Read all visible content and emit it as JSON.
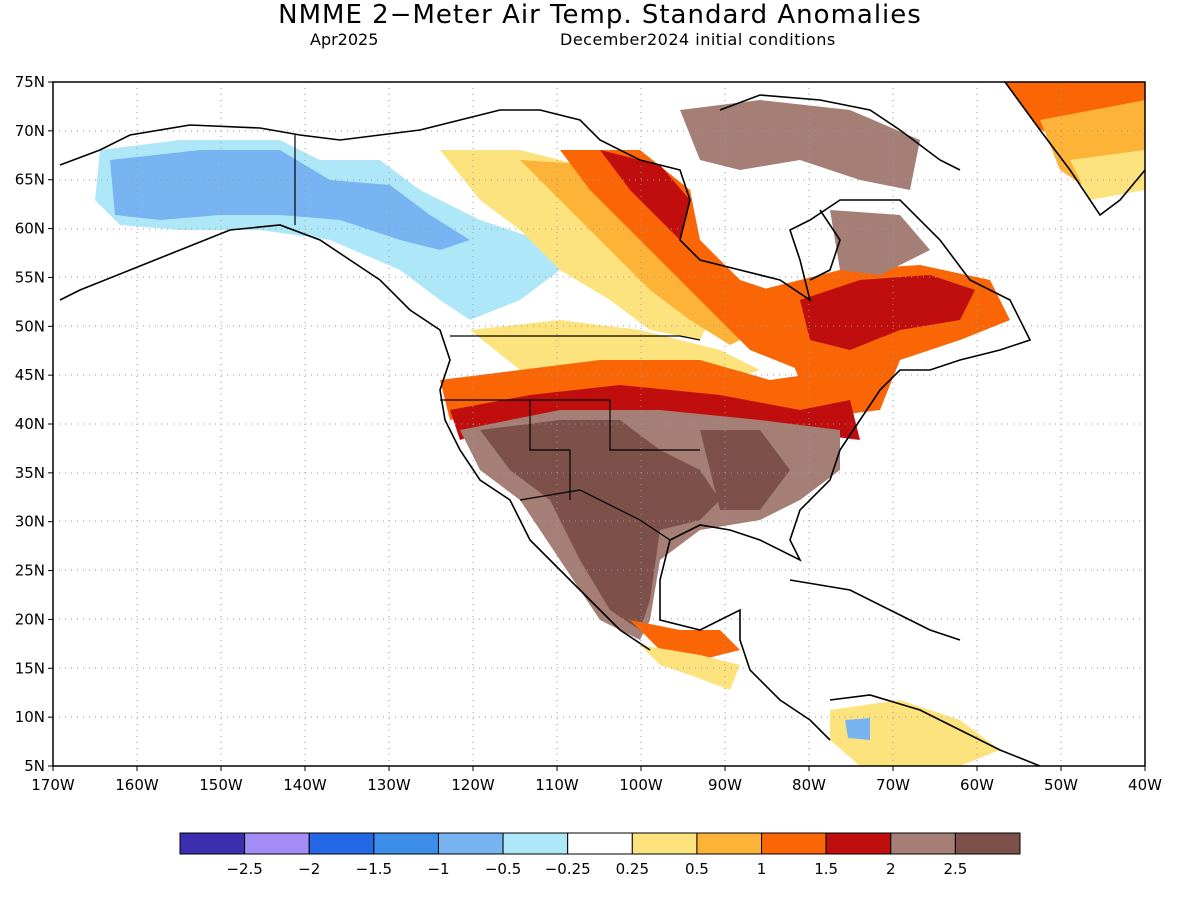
{
  "header": {
    "title": "NMME 2−Meter Air Temp. Standard Anomalies",
    "valid_month": "Apr2025",
    "initial_conditions": "December2024 initial conditions"
  },
  "chart_data": {
    "type": "heatmap",
    "title": "NMME 2−Meter Air Temp. Standard Anomalies",
    "lon_range": [
      -170,
      -40
    ],
    "lat_range": [
      5,
      75
    ],
    "lat_ticks": [
      "75N",
      "70N",
      "65N",
      "60N",
      "55N",
      "50N",
      "45N",
      "40N",
      "35N",
      "30N",
      "25N",
      "20N",
      "15N",
      "10N",
      "5N"
    ],
    "lon_ticks": [
      "170W",
      "160W",
      "150W",
      "140W",
      "130W",
      "120W",
      "110W",
      "100W",
      "90W",
      "80W",
      "70W",
      "60W",
      "50W",
      "40W"
    ],
    "grid": "dotted",
    "colorbar": {
      "bins": [
        {
          "color": "#3b2fb0"
        },
        {
          "color": "#a38cf6"
        },
        {
          "color": "#2468e6"
        },
        {
          "color": "#3d8ee8"
        },
        {
          "color": "#78b4f2"
        },
        {
          "color": "#aee8f8"
        },
        {
          "color": "#ffffff"
        },
        {
          "color": "#fde37e"
        },
        {
          "color": "#fcb338"
        },
        {
          "color": "#fa6506"
        },
        {
          "color": "#c00e0f"
        },
        {
          "color": "#a57e76"
        },
        {
          "color": "#7d5149"
        }
      ],
      "labels": [
        "−2.5",
        "−2",
        "−1.5",
        "−1",
        "−0.5",
        "−0.25",
        "0.25",
        "0.5",
        "1",
        "1.5",
        "2",
        "2.5"
      ]
    },
    "regions": [
      {
        "name": "alaska-yukon",
        "color": "#78b4f2",
        "level": "-1"
      },
      {
        "name": "western-canada",
        "color": "#aee8f8",
        "level": "-0.5"
      },
      {
        "name": "hudson-bay-band",
        "color": "#fa6506",
        "level": "1.5"
      },
      {
        "name": "quebec-labrador",
        "color": "#c00e0f",
        "level": "2"
      },
      {
        "name": "southwest-us-mexico",
        "color": "#7d5149",
        "level": "2.5+"
      },
      {
        "name": "central-southern-us",
        "color": "#a57e76",
        "level": "2.5"
      },
      {
        "name": "greenland-south",
        "color": "#fa6506",
        "level": "1.5"
      },
      {
        "name": "baffin-island",
        "color": "#a57e76",
        "level": "2.5"
      }
    ]
  }
}
